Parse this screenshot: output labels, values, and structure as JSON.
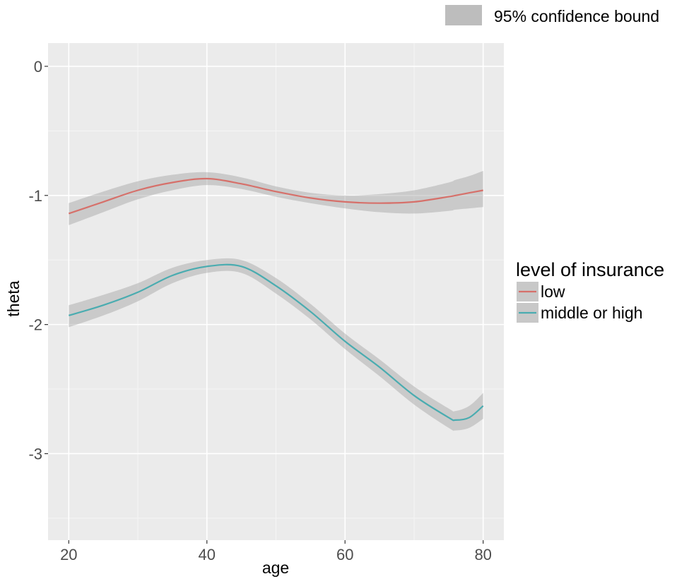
{
  "chart_data": {
    "type": "line",
    "xlabel": "age",
    "ylabel": "theta",
    "xlim": [
      17,
      83
    ],
    "ylim": [
      -3.67,
      0.18
    ],
    "x_ticks": [
      20,
      40,
      60,
      80
    ],
    "x_tick_labels": [
      "20",
      "40",
      "60",
      "80"
    ],
    "y_ticks": [
      0,
      -1,
      -2,
      -3
    ],
    "y_tick_labels": [
      "0",
      "-1",
      "-2",
      "-3"
    ],
    "grid": true,
    "band_legend": {
      "label": "95% confidence bound",
      "color": "#bdbdbd",
      "placement": "top-right"
    },
    "legend": {
      "title": "level of insurance",
      "placement": "right",
      "entries": [
        "low",
        "middle or high"
      ]
    },
    "x": [
      20,
      25,
      30,
      35,
      40,
      45,
      50,
      55,
      60,
      65,
      70,
      75,
      76,
      78,
      80
    ],
    "series": [
      {
        "name": "low",
        "color": "#d6706a",
        "values": [
          -1.14,
          -1.05,
          -0.96,
          -0.9,
          -0.87,
          -0.91,
          -0.97,
          -1.02,
          -1.05,
          -1.06,
          -1.05,
          -1.01,
          -1.0,
          -0.98,
          -0.96
        ],
        "lower": [
          -1.23,
          -1.13,
          -1.03,
          -0.96,
          -0.92,
          -0.95,
          -1.01,
          -1.06,
          -1.1,
          -1.13,
          -1.14,
          -1.12,
          -1.11,
          -1.1,
          -1.09
        ],
        "upper": [
          -1.06,
          -0.97,
          -0.89,
          -0.84,
          -0.82,
          -0.86,
          -0.93,
          -0.98,
          -1.0,
          -0.99,
          -0.96,
          -0.9,
          -0.88,
          -0.85,
          -0.81
        ]
      },
      {
        "name": "middle or high",
        "color": "#4aacb0",
        "values": [
          -1.93,
          -1.85,
          -1.75,
          -1.62,
          -1.55,
          -1.55,
          -1.7,
          -1.9,
          -2.13,
          -2.33,
          -2.55,
          -2.72,
          -2.74,
          -2.72,
          -2.63
        ],
        "lower": [
          -2.02,
          -1.93,
          -1.82,
          -1.68,
          -1.6,
          -1.6,
          -1.76,
          -1.96,
          -2.19,
          -2.4,
          -2.62,
          -2.8,
          -2.82,
          -2.8,
          -2.73
        ],
        "upper": [
          -1.85,
          -1.77,
          -1.68,
          -1.56,
          -1.5,
          -1.5,
          -1.64,
          -1.84,
          -2.07,
          -2.27,
          -2.48,
          -2.65,
          -2.67,
          -2.63,
          -2.53
        ]
      }
    ]
  }
}
